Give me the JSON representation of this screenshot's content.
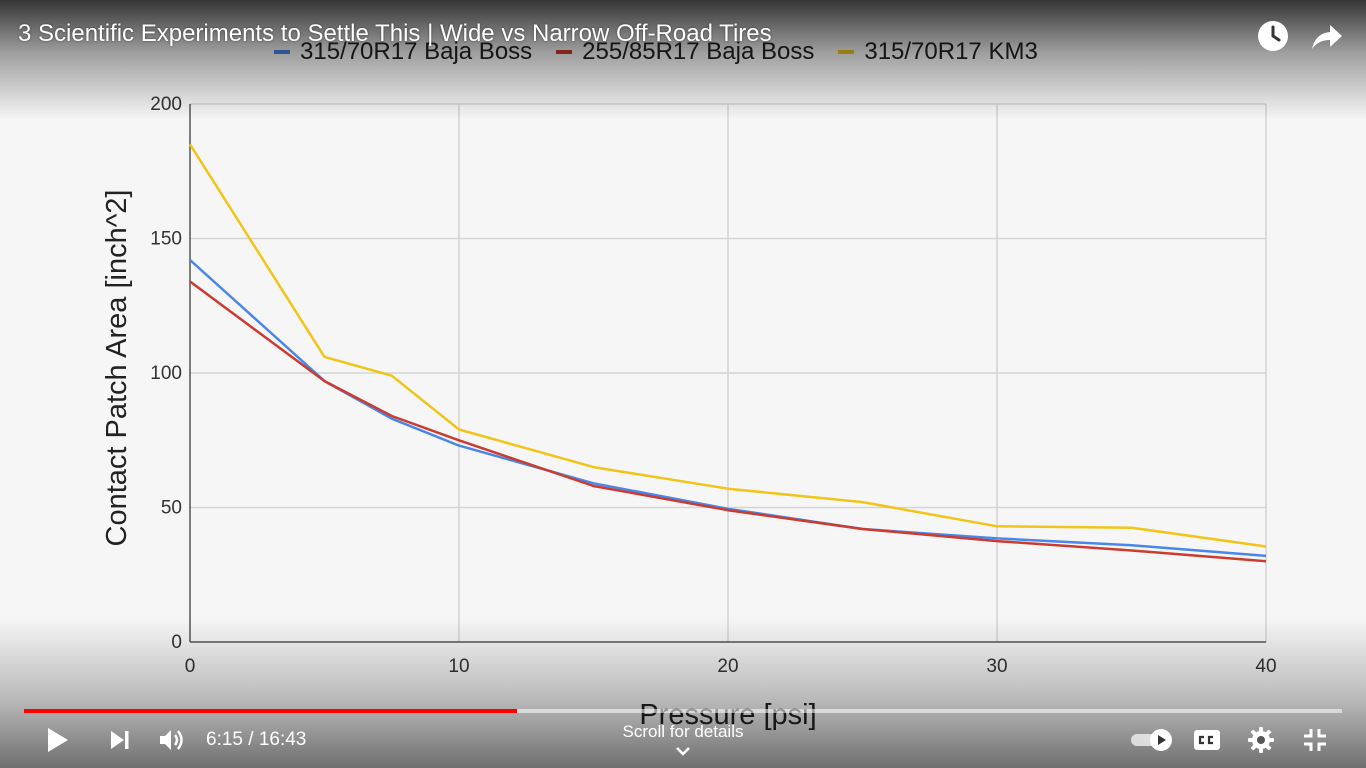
{
  "video": {
    "title": "3 Scientific Experiments to Settle This | Wide vs Narrow Off-Road Tires"
  },
  "top_actions": {
    "watch_later_icon": "clock-icon",
    "share_icon": "share-arrow-icon"
  },
  "controls": {
    "current_time": "6:15",
    "duration": "16:43",
    "time_display": "6:15 / 16:43",
    "progress_fraction": 0.374,
    "icons": [
      "play-icon",
      "next-icon",
      "volume-icon",
      "autoplay-toggle-icon",
      "captions-icon",
      "settings-icon",
      "exit-fullscreen-icon"
    ]
  },
  "scroll_hint": "Scroll for details",
  "colors": {
    "progress_red": "#ff0000",
    "series_blue": "#4a86e8",
    "series_red": "#cc3b30",
    "series_yellow": "#f0c419"
  },
  "chart_data": {
    "type": "line",
    "title": "",
    "xlabel": "Pressure [psi]",
    "ylabel": "Contact Patch Area [inch^2]",
    "xlim": [
      0,
      40
    ],
    "ylim": [
      0,
      200
    ],
    "x_ticks": [
      "0",
      "10",
      "20",
      "30",
      "40"
    ],
    "y_ticks": [
      "0",
      "50",
      "100",
      "150",
      "200"
    ],
    "grid": true,
    "legend_position": "top",
    "series": [
      {
        "name": "315/70R17 Baja Boss",
        "color": "#4a86e8",
        "points": [
          [
            0,
            142
          ],
          [
            5,
            97
          ],
          [
            7.5,
            83
          ],
          [
            10,
            73
          ],
          [
            15,
            59
          ],
          [
            20,
            49.5
          ],
          [
            25,
            42
          ],
          [
            30,
            38.5
          ],
          [
            35,
            36
          ],
          [
            40,
            32
          ]
        ]
      },
      {
        "name": "255/85R17 Baja Boss",
        "color": "#cc3b30",
        "points": [
          [
            0,
            134
          ],
          [
            5,
            97
          ],
          [
            7.5,
            84
          ],
          [
            10,
            75
          ],
          [
            15,
            58
          ],
          [
            20,
            49
          ],
          [
            25,
            42
          ],
          [
            30,
            37.5
          ],
          [
            35,
            34
          ],
          [
            40,
            30
          ]
        ]
      },
      {
        "name": "315/70R17 KM3",
        "color": "#f0c419",
        "points": [
          [
            0,
            185
          ],
          [
            5,
            106
          ],
          [
            7.5,
            99
          ],
          [
            10,
            79
          ],
          [
            15,
            65
          ],
          [
            20,
            57
          ],
          [
            25,
            52
          ],
          [
            30,
            43
          ],
          [
            35,
            42.5
          ],
          [
            40,
            35.5
          ]
        ]
      }
    ]
  }
}
